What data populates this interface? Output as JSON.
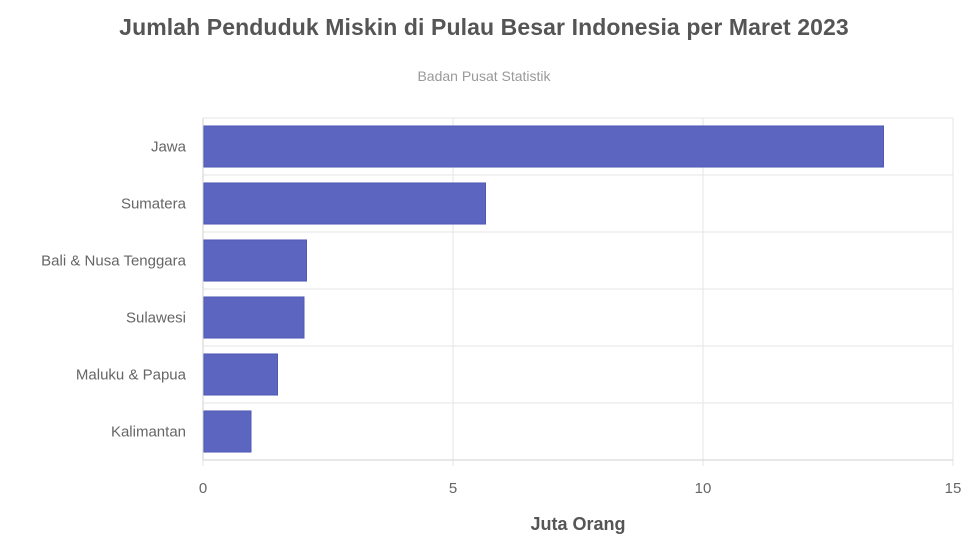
{
  "chart_data": {
    "type": "bar",
    "orientation": "horizontal",
    "title": "Jumlah Penduduk Miskin di Pulau Besar Indonesia per Maret 2023",
    "subtitle": "Badan Pusat Statistik",
    "categories": [
      "Jawa",
      "Sumatera",
      "Bali & Nusa Tenggara",
      "Sulawesi",
      "Maluku & Papua",
      "Kalimantan"
    ],
    "values": [
      13.61,
      5.65,
      2.07,
      2.02,
      1.49,
      0.96
    ],
    "xlabel": "Juta Orang",
    "ylabel": "",
    "xlim": [
      0,
      15
    ],
    "xticks": [
      "0",
      "5",
      "10",
      "15"
    ],
    "grid": true,
    "bar_color": "#5c66c0"
  }
}
